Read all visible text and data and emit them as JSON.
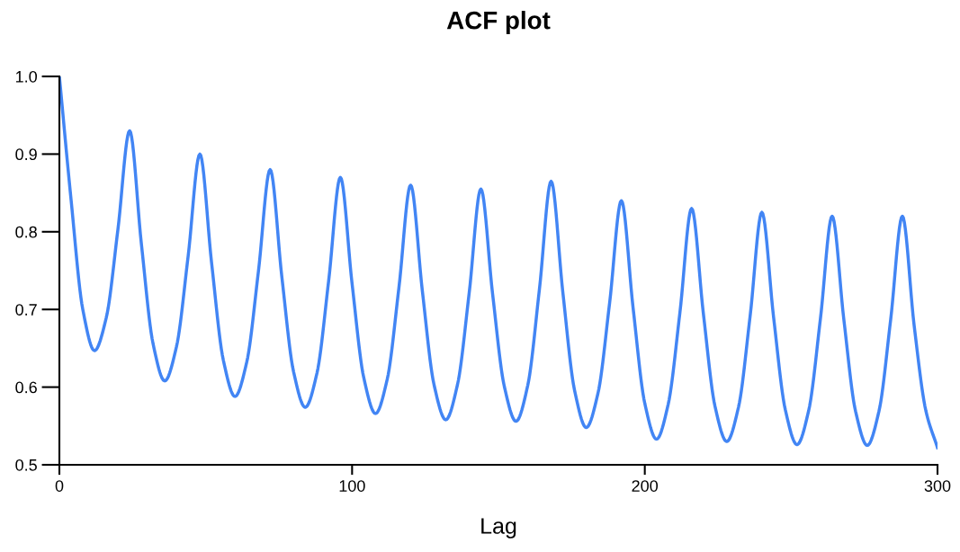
{
  "chart_data": {
    "type": "line",
    "title": "ACF plot",
    "xlabel": "Lag",
    "x": [
      0,
      4,
      8,
      12,
      16,
      20,
      24,
      28,
      32,
      36,
      40,
      44,
      48,
      52,
      56,
      60,
      64,
      68,
      72,
      76,
      80,
      84,
      88,
      92,
      96,
      100,
      104,
      108,
      112,
      116,
      120,
      124,
      128,
      132,
      136,
      140,
      144,
      148,
      152,
      156,
      160,
      164,
      168,
      172,
      176,
      180,
      184,
      188,
      192,
      196,
      200,
      204,
      208,
      212,
      216,
      220,
      224,
      228,
      232,
      236,
      240,
      244,
      248,
      252,
      256,
      260,
      264,
      268,
      272,
      276,
      280,
      284,
      288,
      292,
      296,
      300
    ],
    "series": [
      {
        "color": "#4285f4",
        "values": [
          1.0,
          0.841,
          0.7,
          0.647,
          0.689,
          0.803,
          0.93,
          0.785,
          0.656,
          0.608,
          0.652,
          0.769,
          0.9,
          0.76,
          0.635,
          0.588,
          0.632,
          0.749,
          0.88,
          0.742,
          0.62,
          0.574,
          0.618,
          0.737,
          0.87,
          0.733,
          0.612,
          0.566,
          0.61,
          0.728,
          0.86,
          0.724,
          0.603,
          0.558,
          0.603,
          0.721,
          0.855,
          0.72,
          0.601,
          0.556,
          0.602,
          0.726,
          0.865,
          0.722,
          0.596,
          0.548,
          0.592,
          0.709,
          0.84,
          0.702,
          0.579,
          0.533,
          0.578,
          0.696,
          0.83,
          0.695,
          0.575,
          0.53,
          0.574,
          0.692,
          0.825,
          0.69,
          0.571,
          0.526,
          0.57,
          0.688,
          0.82,
          0.687,
          0.569,
          0.525,
          0.569,
          0.687,
          0.82,
          0.68,
          0.57,
          0.522
        ]
      }
    ],
    "xlim": [
      0,
      300
    ],
    "xticks": [
      0,
      100,
      200,
      300
    ],
    "ylim": [
      0.5,
      1.0
    ],
    "yticks": [
      0.5,
      0.6,
      0.7,
      0.8,
      0.9,
      {
        "value": 1.0,
        "label": "1.0"
      }
    ],
    "grid": false,
    "legend": false,
    "line_style": "solid"
  }
}
